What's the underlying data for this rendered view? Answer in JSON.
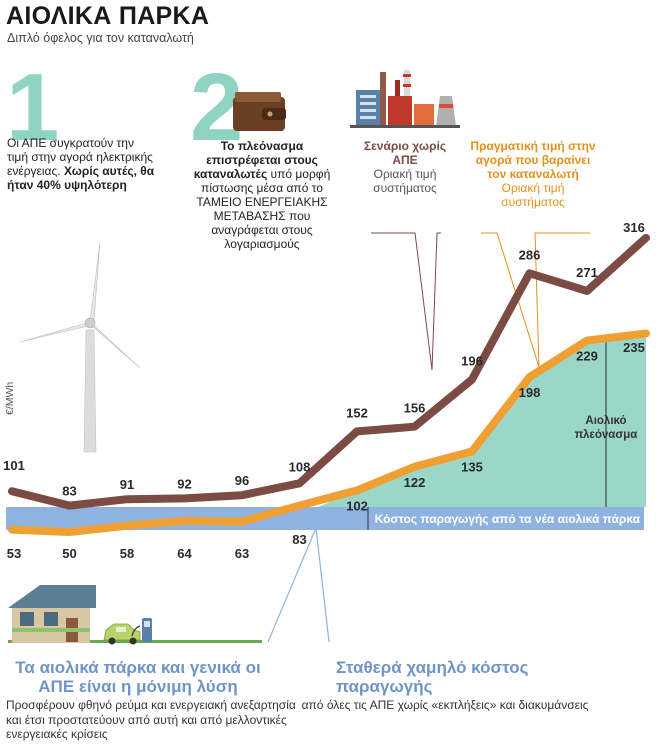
{
  "header": {
    "title": "ΑΙΟΛΙΚΑ ΠΑΡΚΑ",
    "subtitle": "Διπλό όφελος για τον καταναλωτή"
  },
  "points": {
    "one": {
      "number": "1",
      "text_regular": "Οι ΑΠΕ συγκρατούν την τιμή στην αγορά ηλεκτρικής ενέργειας.",
      "text_bold": "Χωρίς αυτές, θα ήταν 40% υψηλότερη"
    },
    "two": {
      "number": "2",
      "text_bold": "Το πλεόνασμα επιστρέφεται στους καταναλωτές",
      "text_regular": "υπό μορφή πίστωσης μέσα από το ΤΑΜΕΙΟ ΕΝΕΡΓΕΙΑΚΗΣ ΜΕΤΑΒΑΣΗΣ που αναγράφεται στους λογαριασμούς"
    }
  },
  "scenarios": {
    "no_res": {
      "title": "Σενάριο χωρίς ΑΠΕ",
      "subtitle": "Οριακή τιμή συστήματος"
    },
    "real": {
      "title": "Πραγματική τιμή στην αγορά που βαραίνει τον καταναλωτή",
      "subtitle": "Οριακή τιμή συστήματος"
    }
  },
  "bottom": {
    "left_title": "Τα αιολικά πάρκα και γενικά οι ΑΠΕ είναι η μόνιμη λύση",
    "left_text": "Προσφέρουν φθηνό ρεύμα και ενεργειακή ανεξαρτησία και έτσι προστατεύουν από αυτή και από μελλοντικές ενεργειακές κρίσεις",
    "right_title": "Σταθερά χαμηλό κόστος παραγωγής",
    "right_text": "από όλες τις ΑΠΕ χωρίς «εκπλήξεις» και διακυμάνσεις"
  },
  "icons": [
    "wind-turbine-icon",
    "wallet-icon",
    "factory-icon",
    "house-icon",
    "electric-car-icon",
    "charger-icon"
  ],
  "chart_data": {
    "type": "line",
    "ylabel": "€/MWh",
    "cost_band_label": "Κόστος παραγωγής από τα νέα αιολικά πάρκα",
    "surplus_label": "Αιολικό πλεόνασμα",
    "series": [
      {
        "name": "Σενάριο χωρίς ΑΠΕ",
        "color": "#7b4b44",
        "values": [
          101,
          83,
          91,
          92,
          96,
          108,
          152,
          156,
          196,
          286,
          271,
          316
        ]
      },
      {
        "name": "Πραγματική τιμή στην αγορά",
        "color": "#f0a032",
        "values": [
          53,
          50,
          58,
          64,
          63,
          83,
          102,
          122,
          135,
          198,
          229,
          235
        ]
      }
    ],
    "band_color": "#8fb3e0",
    "surplus_color": "#8fd3c2"
  }
}
